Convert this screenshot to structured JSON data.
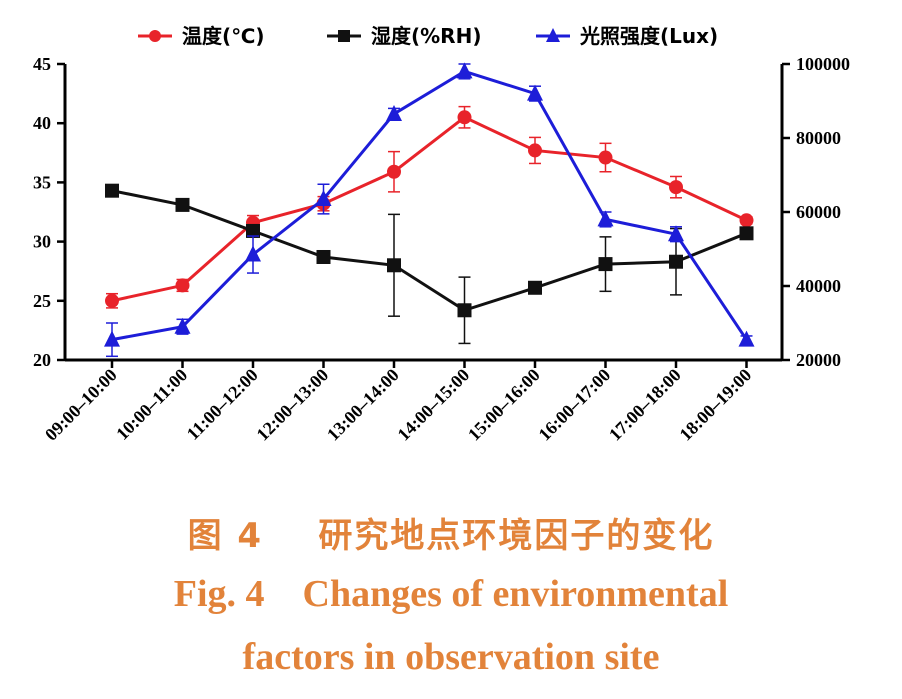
{
  "chart_data": {
    "type": "line",
    "categories": [
      "09:00–10:00",
      "10:00–11:00",
      "11:00–12:00",
      "12:00–13:00",
      "13:00–14:00",
      "14:00–15:00",
      "15:00–16:00",
      "16:00–17:00",
      "17:00–18:00",
      "18:00–19:00"
    ],
    "y_left": {
      "min": 20,
      "max": 45,
      "ticks": [
        20,
        25,
        30,
        35,
        40,
        45
      ]
    },
    "y_right": {
      "min": 20000,
      "max": 100000,
      "ticks": [
        20000,
        40000,
        60000,
        80000,
        100000
      ],
      "tick_labels": [
        "20000",
        "40000",
        "60000",
        "80000",
        "100000"
      ]
    },
    "grid": false,
    "legend_position": "top",
    "series": [
      {
        "name": "温度(℃)",
        "axis": "left",
        "color": "#e8232a",
        "marker": "circle",
        "values": [
          25.0,
          26.3,
          31.6,
          33.2,
          35.9,
          40.5,
          37.7,
          37.1,
          34.6,
          31.8
        ],
        "errors": [
          0.6,
          0.5,
          0.6,
          0.6,
          1.7,
          0.9,
          1.1,
          1.2,
          0.9,
          0.3
        ]
      },
      {
        "name": "湿度(%RH)",
        "axis": "left",
        "color": "#111111",
        "marker": "square",
        "values": [
          34.3,
          33.1,
          30.9,
          28.7,
          28.0,
          24.2,
          26.1,
          28.1,
          28.3,
          30.7
        ],
        "errors": [
          0.3,
          0.3,
          0.3,
          0.3,
          4.3,
          2.8,
          0.4,
          2.3,
          2.8,
          0.3
        ]
      },
      {
        "name": "光照强度(Lux)",
        "axis": "right",
        "color": "#1d1dd8",
        "marker": "triangle",
        "values": [
          25500,
          29000,
          48500,
          63500,
          86500,
          98000,
          92000,
          58000,
          54000,
          25500
        ],
        "errors": [
          4500,
          2000,
          5000,
          4000,
          1500,
          2000,
          2000,
          2000,
          2000,
          1000
        ]
      }
    ]
  },
  "caption": {
    "cn": "图 4    研究地点环境因子的变化",
    "en_line1": "Fig. 4    Changes of environmental",
    "en_line2": "factors in observation site"
  }
}
